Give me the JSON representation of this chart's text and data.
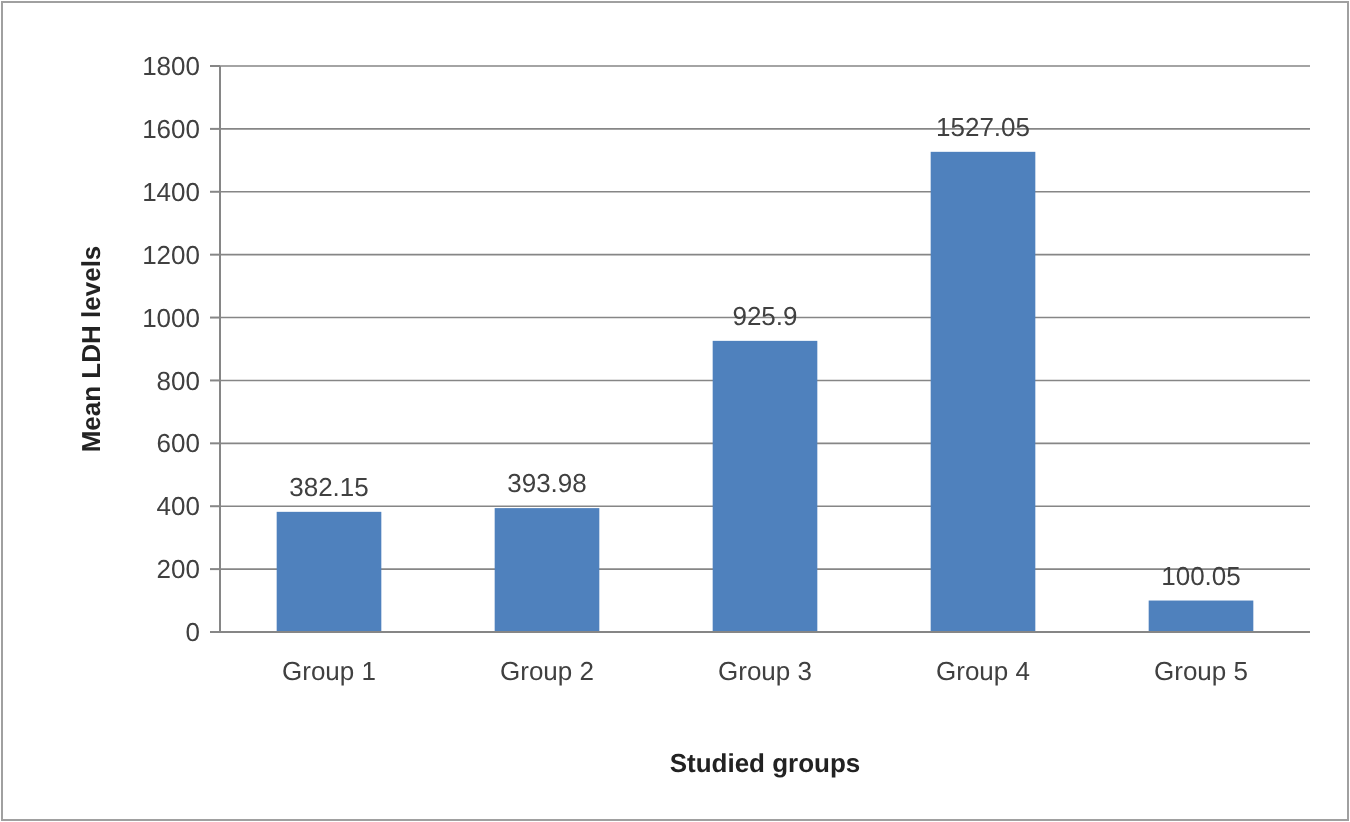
{
  "chart_data": {
    "type": "bar",
    "xlabel": "Studied groups",
    "ylabel": "Mean LDH levels",
    "categories": [
      "Group 1",
      "Group 2",
      "Group 3",
      "Group 4",
      "Group 5"
    ],
    "values": [
      382.15,
      393.98,
      925.9,
      1527.05,
      100.05
    ],
    "color": "#4f81bd",
    "ylim": [
      0,
      1800
    ],
    "yticks": [
      0,
      200,
      400,
      600,
      800,
      1000,
      1200,
      1400,
      1600,
      1800
    ],
    "grid": "y",
    "data_labels": true
  }
}
